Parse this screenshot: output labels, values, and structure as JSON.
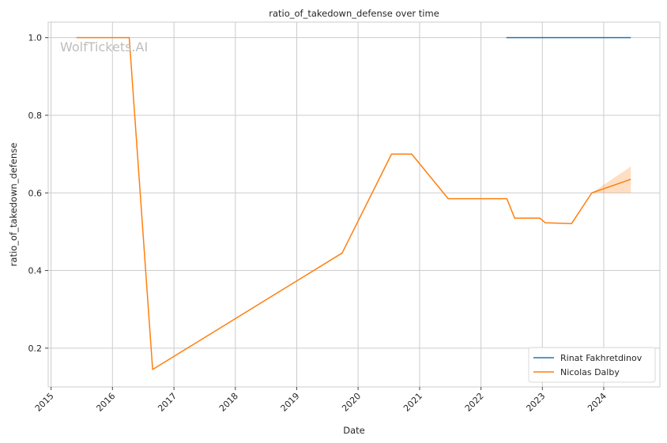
{
  "chart_data": {
    "type": "line",
    "title": "ratio_of_takedown_defense over time",
    "xlabel": "Date",
    "ylabel": "ratio_of_takedown_defense",
    "x_axis_type": "date",
    "xlim": [
      "2014-12-15",
      "2024-11-30"
    ],
    "ylim": [
      0.1,
      1.04
    ],
    "x_ticks": [
      "2015",
      "2016",
      "2017",
      "2018",
      "2019",
      "2020",
      "2021",
      "2022",
      "2023",
      "2024"
    ],
    "y_ticks": [
      0.2,
      0.4,
      0.6,
      0.8,
      1.0
    ],
    "y_tick_labels": [
      "0.2",
      "0.4",
      "0.6",
      "0.8",
      "1.0"
    ],
    "grid": true,
    "legend_position": "bottom-right",
    "watermark": "WolfTickets.AI",
    "series": [
      {
        "name": "Rinat Fakhretdinov",
        "color": "#1f77b4",
        "points": [
          {
            "x": "2022-06-01",
            "y": 1.0
          },
          {
            "x": "2024-06-10",
            "y": 1.0
          }
        ]
      },
      {
        "name": "Nicolas Dalby",
        "color": "#ff7f0e",
        "points": [
          {
            "x": "2015-06-01",
            "y": 1.0
          },
          {
            "x": "2016-04-10",
            "y": 1.0
          },
          {
            "x": "2016-08-27",
            "y": 0.145
          },
          {
            "x": "2019-09-28",
            "y": 0.445
          },
          {
            "x": "2020-07-18",
            "y": 0.7
          },
          {
            "x": "2020-11-15",
            "y": 0.7
          },
          {
            "x": "2021-06-20",
            "y": 0.585
          },
          {
            "x": "2022-06-04",
            "y": 0.585
          },
          {
            "x": "2022-07-20",
            "y": 0.535
          },
          {
            "x": "2022-12-17",
            "y": 0.535
          },
          {
            "x": "2023-01-18",
            "y": 0.523
          },
          {
            "x": "2023-06-24",
            "y": 0.521
          },
          {
            "x": "2023-10-22",
            "y": 0.6
          },
          {
            "x": "2024-06-10",
            "y": 0.635
          }
        ],
        "confidence_band": [
          {
            "x": "2023-10-22",
            "low": 0.6,
            "high": 0.6
          },
          {
            "x": "2024-06-10",
            "low": 0.6,
            "high": 0.668
          }
        ]
      }
    ]
  }
}
